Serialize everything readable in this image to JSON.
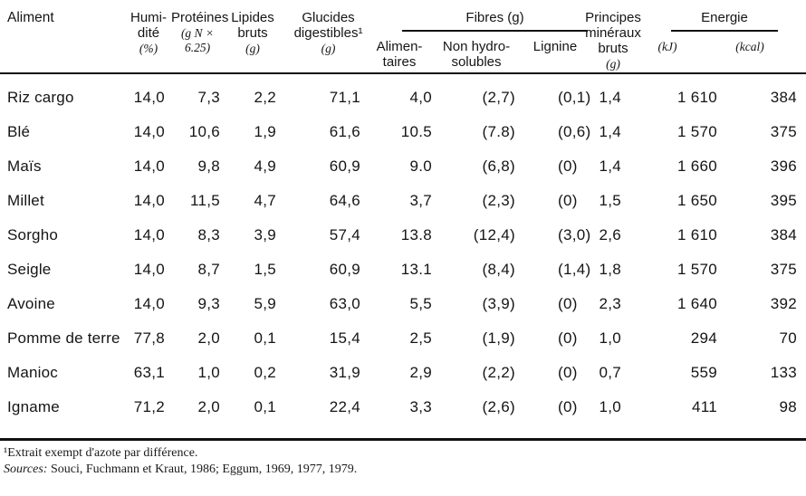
{
  "table": {
    "columns": {
      "aliment": "Aliment",
      "humidite": {
        "main": "Humi-\ndité",
        "sub": "(%)"
      },
      "proteines": {
        "main": "Protéines",
        "sub": "(g N ×\n6.25)"
      },
      "lipides": {
        "main": "Lipides\nbruts",
        "sub": "(g)"
      },
      "glucides": {
        "main": "Glucides\ndigestibles¹",
        "sub": "(g)"
      },
      "fibres_group": "Fibres (g)",
      "fibres_alimentaires": "Alimen-\ntaires",
      "fibres_non_hydrosolubles": "Non hydro-\nsolubles",
      "fibres_lignine": "Lignine",
      "mineraux": {
        "main": "Principes\nminéraux\nbruts",
        "sub": "(g)"
      },
      "energie_group": "Energie",
      "energie_kj": "(kJ)",
      "energie_kcal": "(kcal)"
    },
    "rows": [
      {
        "aliment": "Riz cargo",
        "values": [
          "14,0",
          "7,3",
          "2,2",
          "71,1",
          "4,0",
          "(2,7)",
          "(0,1)",
          "1,4",
          "1 610",
          "384"
        ]
      },
      {
        "aliment": "Blé",
        "values": [
          "14,0",
          "10,6",
          "1,9",
          "61,6",
          "10.5",
          "(7.8)",
          "(0,6)",
          "1,4",
          "1 570",
          "375"
        ]
      },
      {
        "aliment": "Maïs",
        "values": [
          "14,0",
          "9,8",
          "4,9",
          "60,9",
          "9.0",
          "(6,8)",
          "(0)",
          "1,4",
          "1 660",
          "396"
        ]
      },
      {
        "aliment": "Millet",
        "values": [
          "14,0",
          "11,5",
          "4,7",
          "64,6",
          "3,7",
          "(2,3)",
          "(0)",
          "1,5",
          "1 650",
          "395"
        ]
      },
      {
        "aliment": "Sorgho",
        "values": [
          "14,0",
          "8,3",
          "3,9",
          "57,4",
          "13.8",
          "(12,4)",
          "(3,0)",
          "2,6",
          "1 610",
          "384"
        ]
      },
      {
        "aliment": "Seigle",
        "values": [
          "14,0",
          "8,7",
          "1,5",
          "60,9",
          "13.1",
          "(8,4)",
          "(1,4)",
          "1,8",
          "1 570",
          "375"
        ]
      },
      {
        "aliment": "Avoine",
        "values": [
          "14,0",
          "9,3",
          "5,9",
          "63,0",
          "5,5",
          "(3,9)",
          "(0)",
          "2,3",
          "1 640",
          "392"
        ]
      },
      {
        "aliment": "Pomme de terre",
        "values": [
          "77,8",
          "2,0",
          "0,1",
          "15,4",
          "2,5",
          "(1,9)",
          "(0)",
          "1,0",
          "294",
          "70"
        ]
      },
      {
        "aliment": "Manioc",
        "values": [
          "63,1",
          "1,0",
          "0,2",
          "31,9",
          "2,9",
          "(2,2)",
          "(0)",
          "0,7",
          "559",
          "133"
        ]
      },
      {
        "aliment": "Igname",
        "values": [
          "71,2",
          "2,0",
          "0,1",
          "22,4",
          "3,3",
          "(2,6)",
          "(0)",
          "1,0",
          "411",
          "98"
        ]
      }
    ]
  },
  "footnotes": {
    "note1": "¹Extrait exempt d'azote par différence.",
    "sources_label": "Sources:",
    "sources_text": "Souci, Fuchmann et Kraut, 1986;  Eggum, 1969, 1977, 1979."
  }
}
